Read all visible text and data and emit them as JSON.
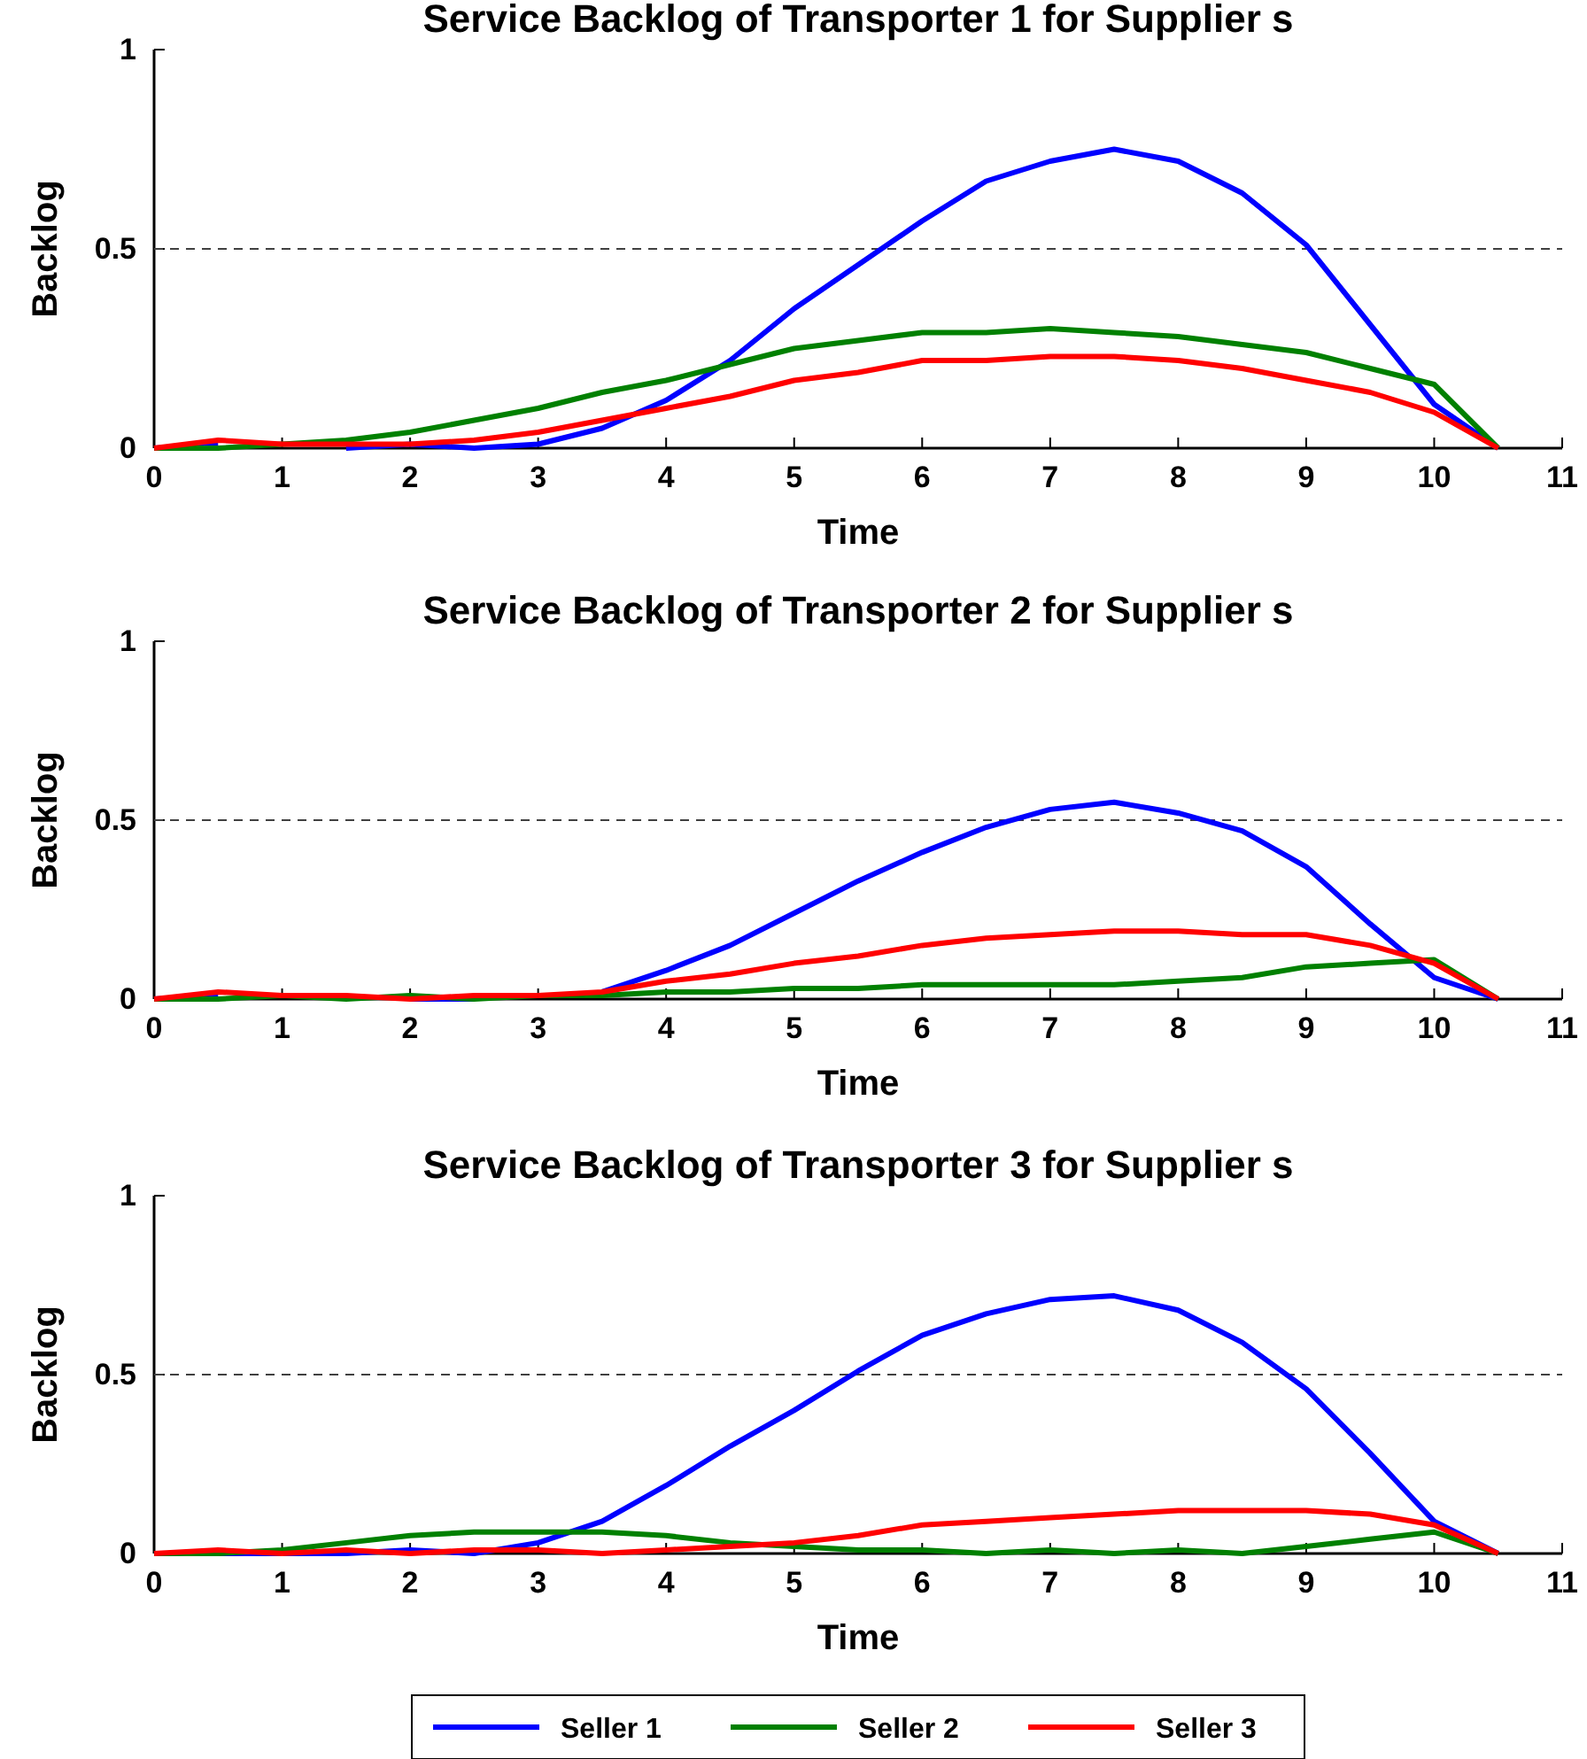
{
  "chart_data": [
    {
      "type": "line",
      "title": "Service Backlog of Transporter 1 for Supplier s",
      "xlabel": "Time",
      "ylabel": "Backlog",
      "x": [
        0,
        0.5,
        1,
        1.5,
        2,
        2.5,
        3,
        3.5,
        4,
        4.5,
        5,
        5.5,
        6,
        6.5,
        7,
        7.5,
        8,
        8.5,
        9,
        9.5,
        10,
        10.5
      ],
      "series": [
        {
          "color": "#0000ff",
          "values": [
            0,
            0.01,
            null,
            0,
            0.01,
            0,
            0.01,
            0.05,
            0.12,
            0.22,
            0.35,
            0.46,
            0.57,
            0.67,
            0.72,
            0.75,
            0.72,
            0.64,
            0.51,
            0.31,
            0.11,
            0
          ]
        },
        {
          "color": "#008000",
          "values": [
            0,
            0,
            0.01,
            0.02,
            0.04,
            0.07,
            0.1,
            0.14,
            0.17,
            0.21,
            0.25,
            0.27,
            0.29,
            0.29,
            0.3,
            0.29,
            0.28,
            0.26,
            0.24,
            0.2,
            0.16,
            0
          ]
        },
        {
          "color": "#ff0000",
          "values": [
            0,
            0.02,
            0.01,
            0.01,
            0.01,
            0.02,
            0.04,
            0.07,
            0.1,
            0.13,
            0.17,
            0.19,
            0.22,
            0.22,
            0.23,
            0.23,
            0.22,
            0.2,
            0.17,
            0.14,
            0.09,
            0
          ]
        }
      ],
      "xlim": [
        0,
        11
      ],
      "xticks": [
        0,
        1,
        2,
        3,
        4,
        5,
        6,
        7,
        8,
        9,
        10,
        11
      ],
      "ylim": [
        0,
        1
      ],
      "yticks": [
        0,
        0.5,
        1
      ],
      "ref_lines": [
        {
          "axis": "y",
          "value": 0.5,
          "color": "#404040",
          "line_style": "dashed"
        }
      ],
      "grid": false,
      "legend": false
    },
    {
      "type": "line",
      "title": "Service Backlog of Transporter 2 for Supplier s",
      "xlabel": "Time",
      "ylabel": "Backlog",
      "x": [
        0,
        0.5,
        1,
        1.5,
        2,
        2.5,
        3,
        3.5,
        4,
        4.5,
        5,
        5.5,
        6,
        6.5,
        7,
        7.5,
        8,
        8.5,
        9,
        9.5,
        10,
        10.5
      ],
      "series": [
        {
          "color": "#0000ff",
          "values": [
            0,
            0.01,
            null,
            null,
            0,
            0,
            null,
            0.02,
            0.08,
            0.15,
            0.24,
            0.33,
            0.41,
            0.48,
            0.53,
            0.55,
            0.52,
            0.47,
            0.37,
            0.21,
            0.06,
            0
          ]
        },
        {
          "color": "#008000",
          "values": [
            0,
            0,
            0.01,
            0,
            0.01,
            0,
            0.01,
            0.01,
            0.02,
            0.02,
            0.03,
            0.03,
            0.04,
            0.04,
            0.04,
            0.04,
            0.05,
            0.06,
            0.09,
            0.1,
            0.11,
            0
          ]
        },
        {
          "color": "#ff0000",
          "values": [
            0,
            0.02,
            0.01,
            0.01,
            0,
            0.01,
            0.01,
            0.02,
            0.05,
            0.07,
            0.1,
            0.12,
            0.15,
            0.17,
            0.18,
            0.19,
            0.19,
            0.18,
            0.18,
            0.15,
            0.1,
            0
          ]
        }
      ],
      "xlim": [
        0,
        11
      ],
      "xticks": [
        0,
        1,
        2,
        3,
        4,
        5,
        6,
        7,
        8,
        9,
        10,
        11
      ],
      "ylim": [
        0,
        1
      ],
      "yticks": [
        0,
        0.5,
        1
      ],
      "ref_lines": [
        {
          "axis": "y",
          "value": 0.5,
          "color": "#404040",
          "line_style": "dashed"
        }
      ],
      "grid": false,
      "legend": false
    },
    {
      "type": "line",
      "title": "Service Backlog of Transporter 3 for Supplier s",
      "xlabel": "Time",
      "ylabel": "Backlog",
      "x": [
        0,
        0.5,
        1,
        1.5,
        2,
        2.5,
        3,
        3.5,
        4,
        4.5,
        5,
        5.5,
        6,
        6.5,
        7,
        7.5,
        8,
        8.5,
        9,
        9.5,
        10,
        10.5
      ],
      "series": [
        {
          "name": "Seller 1",
          "color": "#0000ff",
          "values": [
            0,
            0,
            0,
            0,
            0.01,
            0,
            0.03,
            0.09,
            0.19,
            0.3,
            0.4,
            0.51,
            0.61,
            0.67,
            0.71,
            0.72,
            0.68,
            0.59,
            0.46,
            0.28,
            0.09,
            0
          ]
        },
        {
          "name": "Seller 2",
          "color": "#008000",
          "values": [
            0,
            0,
            0.01,
            0.03,
            0.05,
            0.06,
            0.06,
            0.06,
            0.05,
            0.03,
            0.02,
            0.01,
            0.01,
            0,
            0.01,
            0,
            0.01,
            0,
            0.02,
            0.04,
            0.06,
            0
          ]
        },
        {
          "name": "Seller 3",
          "color": "#ff0000",
          "values": [
            0,
            0.01,
            0,
            0.01,
            0,
            0.01,
            0.01,
            0,
            0.01,
            0.02,
            0.03,
            0.05,
            0.08,
            0.09,
            0.1,
            0.11,
            0.12,
            0.12,
            0.12,
            0.11,
            0.08,
            0
          ]
        }
      ],
      "xlim": [
        0,
        11
      ],
      "xticks": [
        0,
        1,
        2,
        3,
        4,
        5,
        6,
        7,
        8,
        9,
        10,
        11
      ],
      "ylim": [
        0,
        1
      ],
      "yticks": [
        0,
        0.5,
        1
      ],
      "ref_lines": [
        {
          "axis": "y",
          "value": 0.5,
          "color": "#404040",
          "line_style": "dashed"
        }
      ],
      "grid": false,
      "legend": "bottom"
    }
  ]
}
